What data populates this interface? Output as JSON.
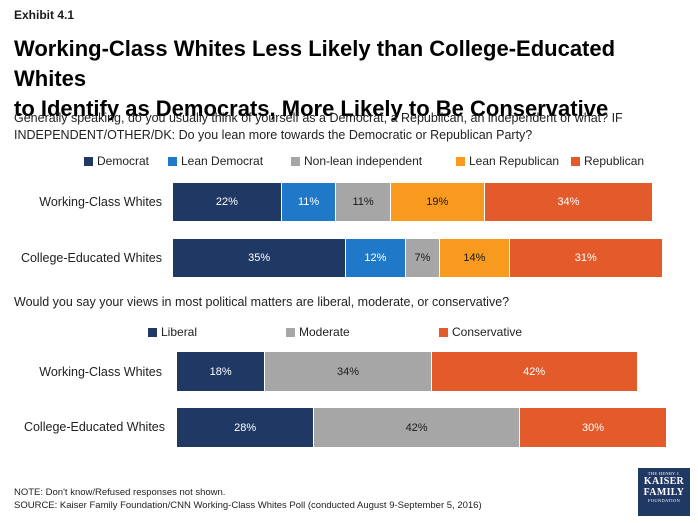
{
  "exhibit": "Exhibit 4.1",
  "title_line1": "Working-Class Whites Less Likely than College-Educated Whites",
  "title_line2": "to Identify as Democrats, More Likely to Be Conservative",
  "chart_data": [
    {
      "type": "bar",
      "stacked": true,
      "orientation": "horizontal",
      "question_line1": "Generally speaking, do you usually think of yourself as a Democrat, a Republican, an independent or what? IF",
      "question_line2": "INDEPENDENT/OTHER/DK: Do you lean more towards the Democratic or Republican Party?",
      "categories": [
        "Working-Class Whites",
        "College-Educated Whites"
      ],
      "series": [
        {
          "name": "Democrat",
          "color": "#1f3864",
          "values": [
            22,
            35
          ],
          "labels": [
            "22%",
            "35%"
          ]
        },
        {
          "name": "Lean Democrat",
          "color": "#1f78c8",
          "values": [
            11,
            12
          ],
          "labels": [
            "11%",
            "12%"
          ]
        },
        {
          "name": "Non-lean independent",
          "color": "#a6a6a6",
          "values": [
            11,
            7
          ],
          "labels": [
            "11%",
            "7%"
          ]
        },
        {
          "name": "Lean Republican",
          "color": "#f79a1e",
          "values": [
            19,
            14
          ],
          "labels": [
            "19%",
            "14%"
          ]
        },
        {
          "name": "Republican",
          "color": "#e35b2a",
          "values": [
            34,
            31
          ],
          "labels": [
            "34%",
            "31%"
          ]
        }
      ]
    },
    {
      "type": "bar",
      "stacked": true,
      "orientation": "horizontal",
      "question_line1": "Would you say your views in most political matters are liberal, moderate, or conservative?",
      "categories": [
        "Working-Class Whites",
        "College-Educated Whites"
      ],
      "series": [
        {
          "name": "Liberal",
          "color": "#1f3864",
          "values": [
            18,
            28
          ],
          "labels": [
            "18%",
            "28%"
          ]
        },
        {
          "name": "Moderate",
          "color": "#a6a6a6",
          "values": [
            34,
            42
          ],
          "labels": [
            "34%",
            "42%"
          ]
        },
        {
          "name": "Conservative",
          "color": "#e35b2a",
          "values": [
            42,
            30
          ],
          "labels": [
            "42%",
            "30%"
          ]
        }
      ]
    }
  ],
  "note": "NOTE: Don't know/Refused responses not shown.",
  "source": "SOURCE: Kaiser Family Foundation/CNN Working-Class Whites Poll (conducted August 9-September 5, 2016)",
  "logo": {
    "line1": "THE HENRY J.",
    "line2": "KAISER",
    "line3": "FAMILY",
    "line4": "FOUNDATION"
  }
}
